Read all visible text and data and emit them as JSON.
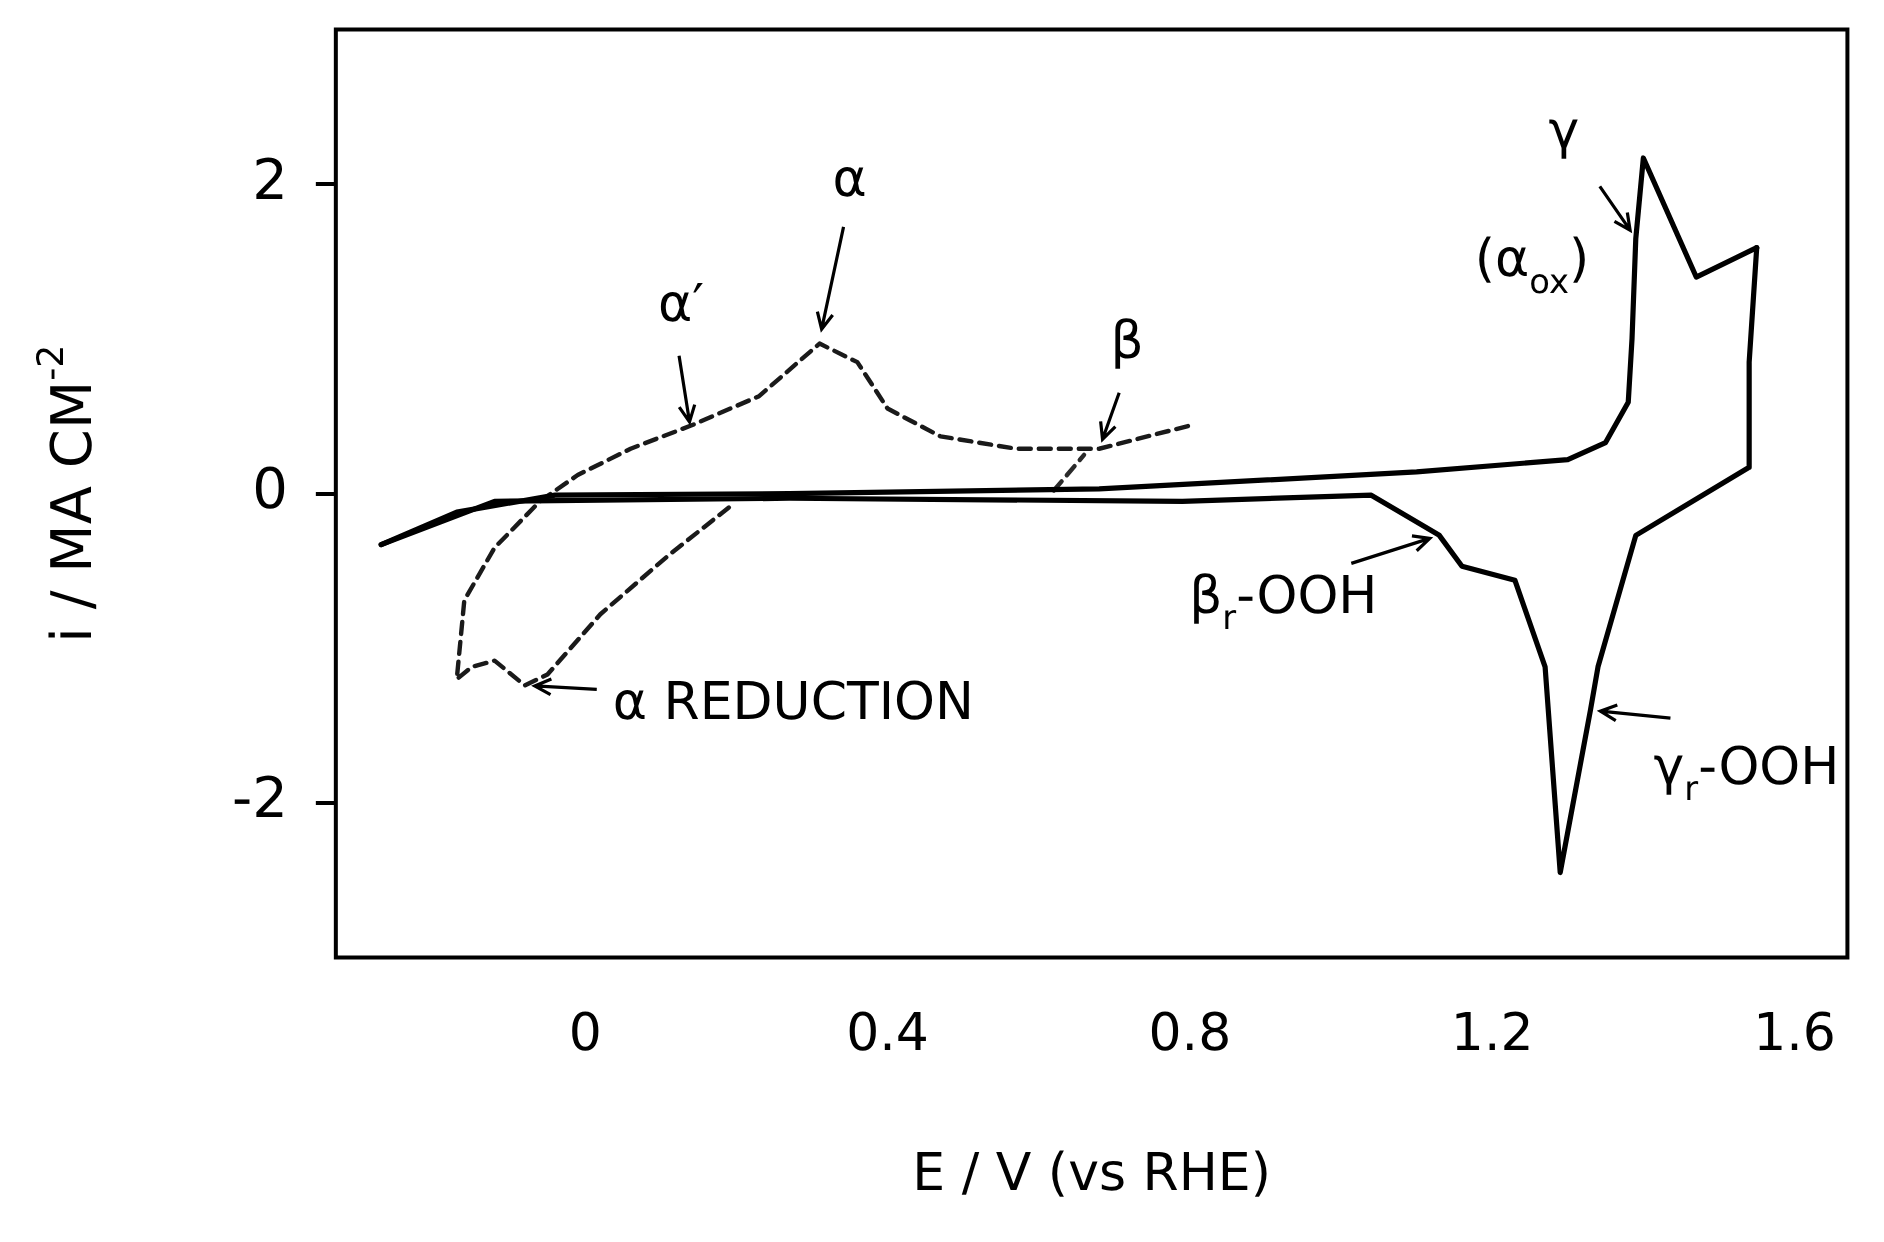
{
  "chart_data": {
    "type": "line",
    "xlabel": "E / V (vs RHE)",
    "ylabel": "i / MA CM$^{-2}$",
    "xlim": [
      -0.33,
      1.67
    ],
    "ylim": [
      -3,
      3
    ],
    "xticks": [
      0,
      0.4,
      0.8,
      1.2,
      1.6
    ],
    "yticks": [
      -2,
      0,
      2
    ],
    "grid": false,
    "legend": false,
    "marker": "none",
    "series": [
      {
        "color": "#000000",
        "line_style": "solid",
        "x": [
          -0.27,
          -0.17,
          -0.04,
          0.27,
          0.68,
          1.1,
          1.3,
          1.35,
          1.38,
          1.385,
          1.39,
          1.4,
          1.47,
          1.55
        ],
        "values": [
          -0.33,
          -0.12,
          -0.01,
          0,
          0.03,
          0.14,
          0.22,
          0.33,
          0.59,
          1.0,
          1.65,
          2.17,
          1.4,
          1.59
        ]
      },
      {
        "color": "#000000",
        "line_style": "solid",
        "x": [
          1.55,
          1.54,
          1.54,
          1.39,
          1.34,
          1.33,
          1.29,
          1.27,
          1.23,
          1.16,
          1.13,
          1.04,
          0.79,
          0.27,
          -0.12,
          -0.27
        ],
        "values": [
          1.59,
          0.85,
          0.17,
          -0.27,
          -1.12,
          -1.4,
          -2.45,
          -1.12,
          -0.56,
          -0.47,
          -0.27,
          -0.01,
          -0.05,
          -0.03,
          -0.05,
          -0.33
        ]
      },
      {
        "color": "#1a1a1a",
        "line_style": "dashed",
        "x": [
          0.19,
          0.11,
          0.02,
          -0.05,
          -0.08,
          -0.12,
          -0.15,
          -0.17,
          -0.16,
          -0.12,
          -0.06,
          -0.01,
          0.06,
          0.14,
          0.23,
          0.31,
          0.36,
          0.4,
          0.47,
          0.57,
          0.68,
          0.8
        ],
        "values": [
          -0.09,
          -0.4,
          -0.78,
          -1.17,
          -1.24,
          -1.08,
          -1.12,
          -1.2,
          -0.69,
          -0.35,
          -0.05,
          0.12,
          0.29,
          0.44,
          0.63,
          0.97,
          0.85,
          0.55,
          0.37,
          0.29,
          0.29,
          0.44
        ]
      },
      {
        "color": "#2a2a2a",
        "line_style": "dashed",
        "x": [
          0.62,
          0.66
        ],
        "values": [
          0.02,
          0.25
        ]
      }
    ],
    "annotations": [
      {
        "text": "α′",
        "x": 0.14,
        "y": 0.4
      },
      {
        "text": "α",
        "x": 0.31,
        "y": 1.0
      },
      {
        "text": "β",
        "x": 0.68,
        "y": 0.29
      },
      {
        "text": "α REDUCTION",
        "x": -0.08,
        "y": -1.24
      },
      {
        "text": "γ",
        "x": 1.39,
        "y": 1.65
      },
      {
        "text": "(α$_{ox}$)",
        "x": 1.385,
        "y": 1.0
      },
      {
        "text": "β$_{r}$-OOH",
        "x": 1.13,
        "y": -0.27
      },
      {
        "text": "γ$_{r}$-OOH",
        "x": 1.33,
        "y": -1.4
      }
    ]
  }
}
